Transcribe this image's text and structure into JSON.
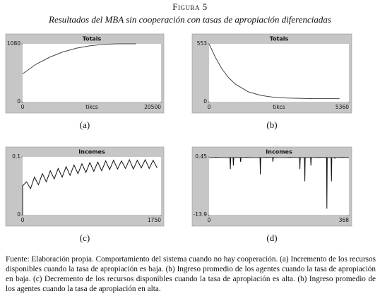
{
  "figure_label": "Figura 5",
  "figure_title": "Resultados del MBA sin cooperación con tasas de apropiación diferenciadas",
  "caption": "Fuente: Elaboración propia. Comportamiento del sistema cuando no hay cooperación. (a) Incremento de los recursos disponibles cuando la tasa de apropiación es baja. (b) Ingreso promedio de los agentes cuando la tasa de apropiación en baja. (c) Decremento de los recursos disponibles cuando la tasa de apropiación es alta. (b) Ingreso promedio de los agentes cuando la tasa de apropiación en alta.",
  "chart_data": [
    {
      "type": "line",
      "title": "Totals",
      "x_label": "tikcs",
      "panel_label": "(a)",
      "color": "#444444",
      "x": [
        0,
        2000,
        4000,
        6000,
        8000,
        10000,
        12000,
        14000,
        16800
      ],
      "values": [
        520,
        700,
        830,
        930,
        1000,
        1045,
        1070,
        1080,
        1080
      ],
      "xlim": [
        0,
        20500
      ],
      "ylim": [
        0,
        1080
      ],
      "xticks": [
        0,
        20500
      ],
      "yticks": [
        0,
        1080
      ]
    },
    {
      "type": "line",
      "title": "Totals",
      "x_label": "tikcs",
      "panel_label": "(b)",
      "color": "#444444",
      "x": [
        0,
        250,
        500,
        750,
        1000,
        1500,
        2000,
        2500,
        3000,
        4000,
        5000
      ],
      "values": [
        553,
        420,
        310,
        230,
        170,
        95,
        60,
        42,
        35,
        30,
        30
      ],
      "xlim": [
        0,
        5360
      ],
      "ylim": [
        0,
        553
      ],
      "xticks": [
        0,
        5360
      ],
      "yticks": [
        0,
        553
      ]
    },
    {
      "type": "line",
      "title": "Incomes",
      "panel_label": "(c)",
      "color": "#111111",
      "x": [
        0,
        0,
        50,
        100,
        150,
        200,
        250,
        300,
        350,
        400,
        450,
        500,
        550,
        600,
        650,
        700,
        750,
        800,
        850,
        900,
        950,
        1000,
        1050,
        1100,
        1150,
        1200,
        1250,
        1300,
        1350,
        1400,
        1450,
        1500,
        1550,
        1600,
        1650,
        1700
      ],
      "values": [
        0,
        0.05,
        0.057,
        0.045,
        0.065,
        0.052,
        0.071,
        0.057,
        0.076,
        0.062,
        0.08,
        0.065,
        0.083,
        0.068,
        0.086,
        0.071,
        0.088,
        0.073,
        0.09,
        0.075,
        0.091,
        0.076,
        0.093,
        0.078,
        0.094,
        0.079,
        0.093,
        0.08,
        0.095,
        0.079,
        0.094,
        0.081,
        0.095,
        0.08,
        0.094,
        0.081
      ],
      "xlim": [
        0,
        1750
      ],
      "ylim": [
        0,
        0.1
      ],
      "xticks": [
        0,
        1750
      ],
      "yticks": [
        0,
        0.1
      ]
    },
    {
      "type": "line",
      "title": "Incomes",
      "panel_label": "(d)",
      "color": "#111111",
      "x": [
        0,
        20,
        40,
        55,
        56,
        57,
        63,
        64,
        65,
        82,
        83,
        84,
        100,
        120,
        134,
        135,
        136,
        150,
        167,
        168,
        169,
        190,
        210,
        238,
        239,
        240,
        251,
        252,
        253,
        267,
        268,
        269,
        290,
        309,
        310,
        311,
        321,
        322,
        323,
        330,
        331,
        332,
        350,
        368
      ],
      "values": [
        0.3,
        0.35,
        0.25,
        0.3,
        -2.6,
        0.3,
        0.3,
        -1.7,
        0.3,
        0.3,
        -0.8,
        0.3,
        0.35,
        0.25,
        0.3,
        -3.9,
        0.3,
        0.35,
        0.3,
        -0.8,
        0.3,
        0.25,
        0.35,
        0.3,
        -2.6,
        0.3,
        0.3,
        -5.6,
        0.3,
        0.3,
        -1.7,
        0.3,
        0.35,
        0.3,
        -12.4,
        0.3,
        0.3,
        -5.6,
        0.3,
        0.3,
        0.1,
        0.3,
        0.35,
        0.3
      ],
      "xlim": [
        0,
        368
      ],
      "ylim": [
        -13.9,
        0.45
      ],
      "xticks": [
        0,
        368
      ],
      "yticks": [
        -13.9,
        0.45
      ]
    }
  ]
}
